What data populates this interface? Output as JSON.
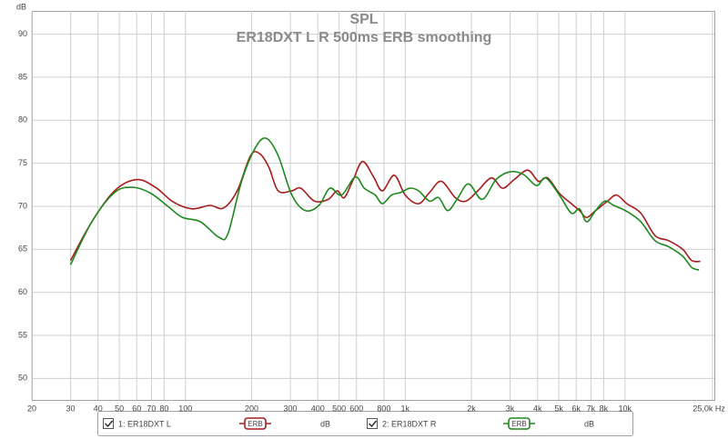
{
  "chart_data": {
    "type": "line",
    "title": "SPL",
    "subtitle": "ER18DXT L R 500ms ERB smoothing",
    "y_label": "dB",
    "log_x": true,
    "grid": true,
    "xlim": [
      20,
      25500
    ],
    "ylim": [
      47.5,
      92.7
    ],
    "xticks": [
      20,
      30,
      40,
      50,
      60,
      70,
      80,
      100,
      200,
      300,
      400,
      500,
      600,
      800,
      {
        "value": 1000,
        "label": "1k"
      },
      {
        "value": 2000,
        "label": "2k"
      },
      {
        "value": 3000,
        "label": "3k"
      },
      {
        "value": 4000,
        "label": "4k"
      },
      {
        "value": 5000,
        "label": "5k"
      },
      {
        "value": 6000,
        "label": "6k"
      },
      {
        "value": 7000,
        "label": "7k"
      },
      {
        "value": 8000,
        "label": "8k"
      },
      {
        "value": 10000,
        "label": "10k"
      },
      {
        "value": 25000,
        "label": "25,0k Hz"
      }
    ],
    "yticks": [
      50,
      55,
      60,
      65,
      70,
      75,
      80,
      85,
      90
    ],
    "legend": "bottom",
    "series": [
      {
        "name": "1: ER18DXT L",
        "color": "#a51c1c",
        "smoothing": "ERB",
        "unit": "dB",
        "x": [
          30,
          37.5,
          47.6,
          60,
          73,
          88,
          107,
          129,
          149,
          172,
          198,
          218,
          240,
          264,
          305,
          335,
          386,
          446,
          490,
          528,
          580,
          640,
          718,
          787,
          892,
          1000,
          1150,
          1290,
          1460,
          1690,
          1890,
          2140,
          2470,
          2770,
          3130,
          3610,
          4040,
          4440,
          5030,
          5700,
          6210,
          6690,
          7350,
          8330,
          9150,
          10200,
          11800,
          13700,
          15800,
          18300,
          20100,
          22000
        ],
        "values": [
          63.7,
          68.2,
          71.8,
          73.1,
          72.2,
          70.5,
          69.7,
          70.1,
          69.8,
          71.8,
          75.9,
          76.1,
          74.5,
          71.8,
          71.8,
          72.1,
          70.6,
          70.8,
          71.8,
          71.0,
          73.1,
          75.2,
          73.4,
          71.8,
          73.6,
          71.3,
          70.3,
          71.6,
          72.9,
          71.0,
          70.6,
          71.8,
          73.3,
          72.1,
          73.1,
          74.2,
          72.9,
          73.3,
          71.5,
          70.3,
          69.5,
          68.7,
          69.5,
          70.6,
          71.3,
          70.3,
          69.2,
          66.6,
          66.0,
          65.0,
          63.7,
          63.6
        ]
      },
      {
        "name": "2: ER18DXT R",
        "color": "#1d8a1d",
        "smoothing": "ERB",
        "unit": "dB",
        "x": [
          30,
          37.5,
          47.6,
          57.6,
          69.6,
          84,
          97,
          117,
          142,
          156,
          180,
          208,
          233,
          264,
          305,
          351,
          405,
          454,
          513,
          592,
          651,
          730,
          787,
          866,
          953,
          1050,
          1150,
          1290,
          1420,
          1560,
          1720,
          1940,
          2240,
          2590,
          2990,
          3450,
          3960,
          4360,
          5030,
          5700,
          6210,
          6690,
          7350,
          8090,
          8890,
          10200,
          11800,
          13700,
          15800,
          18300,
          20100,
          21700
        ],
        "values": [
          63.2,
          68.2,
          71.6,
          72.2,
          71.5,
          69.9,
          68.7,
          68.2,
          66.4,
          66.8,
          72.9,
          76.8,
          77.9,
          75.9,
          71.3,
          69.5,
          70.1,
          72.1,
          71.3,
          73.4,
          72.1,
          71.3,
          70.3,
          71.3,
          71.6,
          72.1,
          71.8,
          70.6,
          71.0,
          69.5,
          70.8,
          72.6,
          70.8,
          73.1,
          74.0,
          73.7,
          72.4,
          73.3,
          71.3,
          69.2,
          69.7,
          68.2,
          69.5,
          70.6,
          70.1,
          69.4,
          68.2,
          66.0,
          65.3,
          64.2,
          62.9,
          62.6
        ]
      }
    ]
  }
}
